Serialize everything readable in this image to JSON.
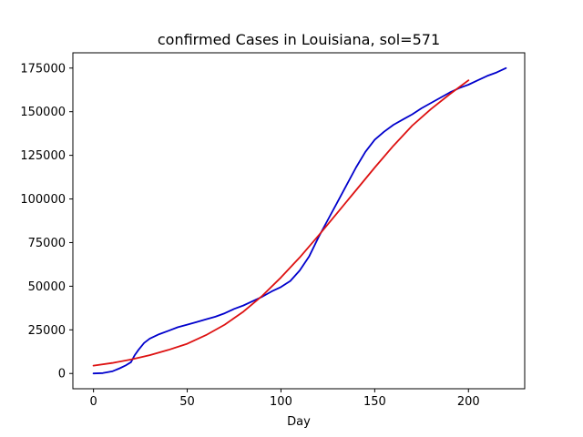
{
  "chart_data": {
    "type": "line",
    "title": "confirmed Cases in Louisiana, sol=571",
    "xlabel": "Day",
    "ylabel": "",
    "xlim": [
      -11,
      230
    ],
    "ylim": [
      -8750,
      183750
    ],
    "xticks": [
      0,
      50,
      100,
      150,
      200
    ],
    "xtick_labels": [
      "0",
      "50",
      "100",
      "150",
      "200"
    ],
    "yticks": [
      0,
      25000,
      50000,
      75000,
      100000,
      125000,
      150000,
      175000
    ],
    "ytick_labels": [
      "0",
      "25000",
      "50000",
      "75000",
      "100000",
      "125000",
      "150000",
      "175000"
    ],
    "grid": false,
    "series": [
      {
        "color": "#0000cc",
        "x": [
          0,
          5,
          10,
          14,
          17,
          20,
          22,
          24,
          27,
          30,
          35,
          40,
          45,
          50,
          55,
          60,
          65,
          70,
          75,
          80,
          85,
          90,
          95,
          100,
          105,
          110,
          115,
          120,
          125,
          130,
          135,
          140,
          145,
          150,
          155,
          160,
          165,
          170,
          175,
          180,
          185,
          190,
          195,
          200,
          205,
          210,
          215,
          220
        ],
        "y": [
          0,
          200,
          1200,
          3000,
          4500,
          6500,
          10500,
          13500,
          17500,
          20000,
          22500,
          24500,
          26500,
          28000,
          29500,
          31000,
          32500,
          34500,
          37000,
          39000,
          41500,
          44000,
          47000,
          49500,
          53000,
          59000,
          67000,
          78000,
          88000,
          98000,
          108000,
          118000,
          127000,
          134000,
          138500,
          142500,
          145500,
          148500,
          152000,
          155000,
          158000,
          161000,
          163500,
          165500,
          168000,
          170500,
          172500,
          175000
        ]
      },
      {
        "color": "#dd1111",
        "x": [
          0,
          10,
          20,
          30,
          40,
          50,
          60,
          70,
          80,
          90,
          100,
          110,
          120,
          130,
          140,
          150,
          160,
          170,
          180,
          190,
          200
        ],
        "y": [
          4500,
          6000,
          8000,
          10500,
          13500,
          17000,
          22000,
          28000,
          35500,
          44500,
          55000,
          66500,
          79000,
          92000,
          105000,
          118000,
          130500,
          142000,
          151500,
          160000,
          168000
        ]
      }
    ]
  }
}
